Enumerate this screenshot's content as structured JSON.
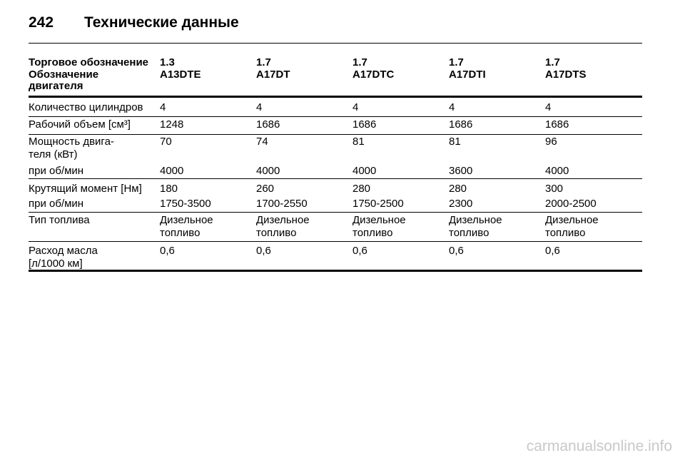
{
  "header": {
    "page_number": "242",
    "title": "Технические данные"
  },
  "table": {
    "header_rows": [
      [
        "Торговое обозначение",
        "1.3",
        "1.7",
        "1.7",
        "1.7",
        "1.7"
      ],
      [
        "Обозначение\nдвигателя",
        "A13DTE",
        "A17DT",
        "A17DTC",
        "A17DTI",
        "A17DTS"
      ]
    ],
    "rows": [
      [
        "Количество цилиндров",
        "4",
        "4",
        "4",
        "4",
        "4"
      ],
      [
        "Рабочий объем [см³]",
        "1248",
        "1686",
        "1686",
        "1686",
        "1686"
      ],
      [
        "Мощность двига-\nтеля (кВт)",
        "70",
        "74",
        "81",
        "81",
        "96"
      ],
      [
        "при об/мин",
        "4000",
        "4000",
        "4000",
        "3600",
        "4000"
      ],
      [
        "Крутящий момент [Нм]",
        "180",
        "260",
        "280",
        "280",
        "300"
      ],
      [
        "при об/мин",
        "1750-3500",
        "1700-2550",
        "1750-2500",
        "2300",
        "2000-2500"
      ],
      [
        "Тип топлива",
        "Дизельное\nтопливо",
        "Дизельное\nтопливо",
        "Дизельное\nтопливо",
        "Дизельное\nтопливо",
        "Дизельное\nтопливо"
      ],
      [
        "Расход масла\n[л/1000 км]",
        "0,6",
        "0,6",
        "0,6",
        "0,6",
        "0,6"
      ]
    ]
  },
  "footer": {
    "watermark": "carmanualsonline.info"
  }
}
